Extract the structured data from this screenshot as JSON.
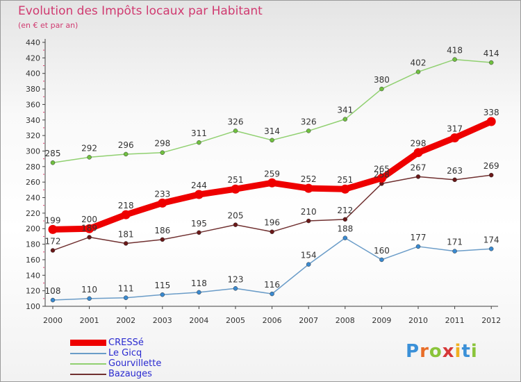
{
  "title": "Evolution des Impôts locaux par Habitant",
  "subtitle": "(en € et par an)",
  "colors": {
    "title": "#d03a70",
    "axis": "#404040",
    "tick_mark": "#e04070",
    "legend_text": "#2a2ad0"
  },
  "logo": {
    "text": "Proxiti",
    "letters": [
      {
        "char": "P",
        "color": "#3a90d8"
      },
      {
        "char": "r",
        "color": "#e86d28"
      },
      {
        "char": "o",
        "color": "#8ac43a"
      },
      {
        "char": "x",
        "color": "#d63838"
      },
      {
        "char": "i",
        "color": "#f0b020"
      },
      {
        "char": "t",
        "color": "#3a90d8"
      },
      {
        "char": "i",
        "color": "#8ac43a"
      }
    ]
  },
  "chart_data": {
    "type": "line",
    "title": "Evolution des Impôts locaux par Habitant",
    "subtitle": "(en € et par an)",
    "x": [
      "2000",
      "2001",
      "2002",
      "2003",
      "2004",
      "2005",
      "2006",
      "2007",
      "2008",
      "2009",
      "2010",
      "2011",
      "2012"
    ],
    "ylim": [
      100,
      440
    ],
    "yticks": [
      100,
      120,
      140,
      160,
      180,
      200,
      220,
      240,
      260,
      280,
      300,
      320,
      340,
      360,
      380,
      400,
      420,
      440
    ],
    "grid": false,
    "legend_position": "bottom-left",
    "series": [
      {
        "name": "CRESSé",
        "color": "#ee0000",
        "dot_color": "#ee0000",
        "width": 9,
        "values": [
          199,
          200,
          218,
          233,
          244,
          251,
          259,
          252,
          251,
          265,
          298,
          317,
          338
        ]
      },
      {
        "name": "Le Gicq",
        "color": "#6a9cc8",
        "dot_color": "#3a8ad0",
        "width": 1.5,
        "values": [
          108,
          110,
          111,
          115,
          118,
          123,
          116,
          154,
          188,
          160,
          177,
          171,
          174
        ]
      },
      {
        "name": "Gourvillette",
        "color": "#90d070",
        "dot_color": "#70c040",
        "width": 1.5,
        "values": [
          285,
          292,
          296,
          298,
          311,
          326,
          314,
          326,
          341,
          380,
          402,
          418,
          414
        ]
      },
      {
        "name": "Bazauges",
        "color": "#703030",
        "dot_color": "#6a1818",
        "width": 1.5,
        "values": [
          172,
          189,
          181,
          186,
          195,
          205,
          196,
          210,
          212,
          258,
          267,
          263,
          269
        ]
      }
    ],
    "value_labels": [
      [
        199,
        200,
        218,
        233,
        244,
        251,
        259,
        252,
        251,
        265,
        298,
        317,
        338
      ],
      [
        108,
        110,
        111,
        115,
        118,
        123,
        116,
        154,
        188,
        160,
        177,
        171,
        174
      ],
      [
        285,
        292,
        296,
        298,
        311,
        326,
        314,
        326,
        341,
        380,
        402,
        418,
        414
      ],
      [
        172,
        189,
        181,
        186,
        195,
        205,
        196,
        210,
        212,
        258,
        267,
        263,
        269
      ]
    ]
  }
}
